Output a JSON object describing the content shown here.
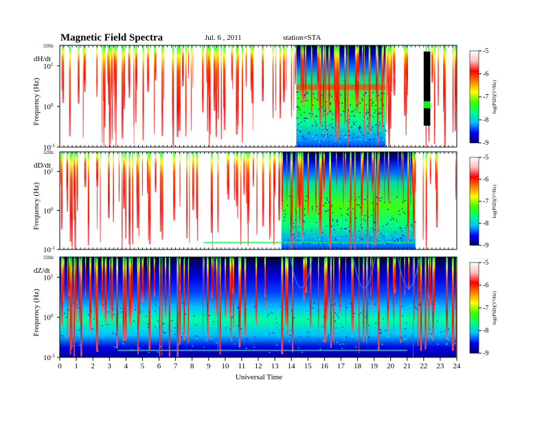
{
  "header": {
    "title": "Magnetic  Field  Spectra",
    "date": "Jul.  6  , 2011",
    "station": "station=STA"
  },
  "chart_data": {
    "type": "heatmap",
    "xlabel": "Universal Time",
    "x_range_hours": [
      0,
      24
    ],
    "x_ticks": [
      "0",
      "1",
      "2",
      "3",
      "4",
      "5",
      "6",
      "7",
      "8",
      "9",
      "10",
      "11",
      "12",
      "13",
      "14",
      "15",
      "16",
      "17",
      "18",
      "19",
      "20",
      "21",
      "22",
      "23",
      "24"
    ],
    "y_scale": "log",
    "y_range_hz": [
      0.1,
      32
    ],
    "y_ticks": [
      {
        "base": "10",
        "exp": "1"
      },
      {
        "base": "10",
        "exp": "0"
      },
      {
        "base": "10",
        "exp": "-1"
      }
    ],
    "y_top_label": "32Hz",
    "colorbar": {
      "label": "log(PSD)(V²/Hz)",
      "range": [
        -9,
        -5
      ],
      "ticks": [
        "-5",
        "-6",
        "-7",
        "-8",
        "-9"
      ],
      "colors": [
        "#000060",
        "#0000ff",
        "#00c0ff",
        "#00ff80",
        "#40ff00",
        "#ffff00",
        "#ff8000",
        "#ff0000",
        "#ffc0c0",
        "#ffffff"
      ]
    },
    "panels": [
      {
        "name": "dH/dt",
        "ylabel": "Frequency  (Hz)",
        "quiet_level": -5.2,
        "active_level": -7.2,
        "active_hours": [
          14.3,
          19.7
        ],
        "dropout_hours": [
          22.0,
          22.4
        ],
        "spikes_per_hour": 6
      },
      {
        "name": "dD/dt",
        "ylabel": "Frequency  (Hz)",
        "quiet_level": -5.3,
        "active_level": -7.3,
        "active_hours": [
          13.4,
          21.5
        ],
        "dropout_hours": null,
        "spikes_per_hour": 5
      },
      {
        "name": "dZ/dt",
        "ylabel": "Frequency  (Hz)",
        "quiet_level": -7.4,
        "active_level": -7.6,
        "active_hours": [
          0,
          24
        ],
        "dropout_hours": null,
        "spikes_per_hour": 5
      }
    ]
  }
}
